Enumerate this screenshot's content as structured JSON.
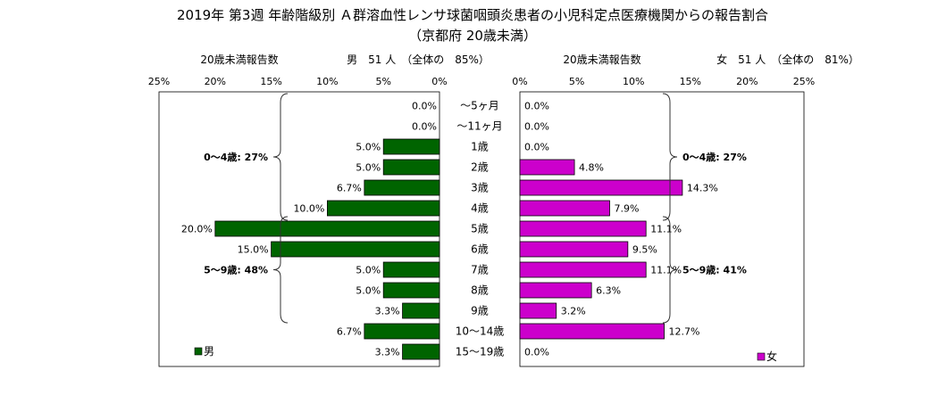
{
  "title": "2019年 第3週 年齢階級別 Ａ群溶血性レンサ球菌咽頭炎患者の小児科定点医療機関からの報告割合",
  "subtitle": "（京都府 20歳未満）",
  "colors": {
    "male": "#006400",
    "female": "#cc00cc",
    "border": "#000000"
  },
  "chart_data": [
    {
      "type": "bar",
      "orientation": "horizontal",
      "direction": "right-to-left",
      "header_label": "20歳未満報告数",
      "header_stat": "男　51 人　（全体の　85%）",
      "legend_label": "男",
      "legend_position": "bottom-left",
      "xlim": [
        0,
        25
      ],
      "ticks": [
        "0%",
        "5%",
        "10%",
        "15%",
        "20%",
        "25%"
      ],
      "tick_values": [
        0,
        5,
        10,
        15,
        20,
        25
      ],
      "categories": [
        "～5ヶ月",
        "～11ヶ月",
        "1歳",
        "2歳",
        "3歳",
        "4歳",
        "5歳",
        "6歳",
        "7歳",
        "8歳",
        "9歳",
        "10～14歳",
        "15～19歳"
      ],
      "values": [
        0.0,
        0.0,
        5.0,
        5.0,
        6.7,
        10.0,
        20.0,
        15.0,
        5.0,
        5.0,
        3.3,
        6.7,
        3.3
      ],
      "value_labels": [
        "0.0%",
        "0.0%",
        "5.0%",
        "5.0%",
        "6.7%",
        "10.0%",
        "20.0%",
        "15.0%",
        "5.0%",
        "5.0%",
        "3.3%",
        "6.7%",
        "3.3%"
      ],
      "groups": [
        {
          "label": "0～4歳: 27%",
          "from": 0,
          "to": 5
        },
        {
          "label": "5～9歳: 48%",
          "from": 6,
          "to": 10
        }
      ]
    },
    {
      "type": "bar",
      "orientation": "horizontal",
      "direction": "left-to-right",
      "header_label": "20歳未満報告数",
      "header_stat": "女　51 人　（全体の　81%）",
      "legend_label": "女",
      "legend_position": "bottom-right",
      "xlim": [
        0,
        25
      ],
      "ticks": [
        "0%",
        "5%",
        "10%",
        "15%",
        "20%",
        "25%"
      ],
      "tick_values": [
        0,
        5,
        10,
        15,
        20,
        25
      ],
      "categories": [
        "～5ヶ月",
        "～11ヶ月",
        "1歳",
        "2歳",
        "3歳",
        "4歳",
        "5歳",
        "6歳",
        "7歳",
        "8歳",
        "9歳",
        "10～14歳",
        "15～19歳"
      ],
      "values": [
        0.0,
        0.0,
        0.0,
        4.8,
        14.3,
        7.9,
        11.1,
        9.5,
        11.1,
        6.3,
        3.2,
        12.7,
        0.0
      ],
      "value_labels": [
        "0.0%",
        "0.0%",
        "0.0%",
        "4.8%",
        "14.3%",
        "7.9%",
        "11.1%",
        "9.5%",
        "11.1%",
        "6.3%",
        "3.2%",
        "12.7%",
        "0.0%"
      ],
      "groups": [
        {
          "label": "0～4歳: 27%",
          "from": 0,
          "to": 5
        },
        {
          "label": "5～9歳: 41%",
          "from": 6,
          "to": 10
        }
      ]
    }
  ]
}
